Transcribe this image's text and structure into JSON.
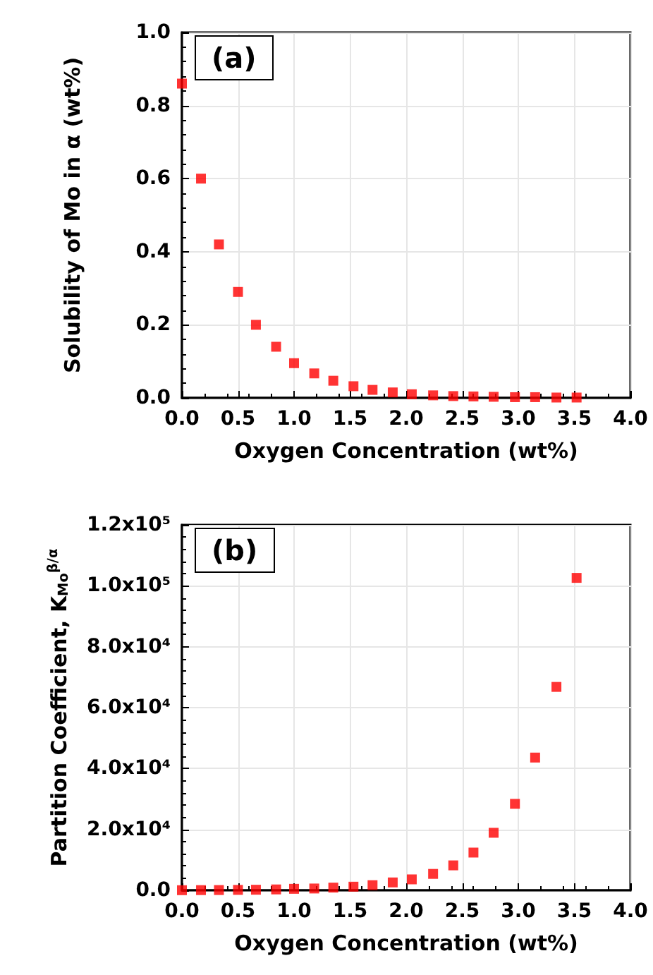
{
  "chart_data": [
    {
      "type": "scatter",
      "xlabel": "Oxygen Concentration (wt%)",
      "ylabel": "Solubility of Mo in α (wt%)",
      "annotations": [
        "(a)"
      ],
      "x": [
        0,
        0.17,
        0.33,
        0.5,
        0.66,
        0.84,
        1.0,
        1.18,
        1.35,
        1.53,
        1.7,
        1.88,
        2.05,
        2.24,
        2.42,
        2.6,
        2.78,
        2.97,
        3.15,
        3.34,
        3.52
      ],
      "series": [
        {
          "color": "#ff0000",
          "values": [
            0.86,
            0.6,
            0.42,
            0.29,
            0.2,
            0.14,
            0.095,
            0.067,
            0.047,
            0.032,
            0.022,
            0.015,
            0.01,
            0.007,
            0.005,
            0.004,
            0.003,
            0.002,
            0.002,
            0.001,
            0.001
          ]
        }
      ],
      "xlim": [
        0,
        4
      ],
      "xticks": [
        {
          "value": 0,
          "label": "0.0"
        },
        0.5,
        {
          "value": 1,
          "label": "1.0"
        },
        1.5,
        {
          "value": 2,
          "label": "2.0"
        },
        2.5,
        {
          "value": 3,
          "label": "3.0"
        },
        3.5,
        {
          "value": 4,
          "label": "4.0"
        }
      ],
      "ylim": [
        0,
        1
      ],
      "yticks": [
        {
          "value": 0,
          "label": "0.0"
        },
        0.2,
        0.4,
        0.6,
        0.8,
        {
          "value": 1,
          "label": "1.0"
        }
      ],
      "grid": true,
      "marker": "square"
    },
    {
      "type": "scatter",
      "xlabel": "Oxygen Concentration (wt%)",
      "ylabel": "Partition Coefficient, K$_{Mo}$$^{β/α}$",
      "annotations": [
        "(b)"
      ],
      "x": [
        0,
        0.17,
        0.33,
        0.5,
        0.66,
        0.84,
        1.0,
        1.18,
        1.35,
        1.53,
        1.7,
        1.88,
        2.05,
        2.24,
        2.42,
        2.6,
        2.78,
        2.97,
        3.15,
        3.34,
        3.52
      ],
      "series": [
        {
          "color": "#ff0000",
          "values": [
            50,
            80,
            100,
            150,
            200,
            300,
            500,
            600,
            900,
            1200,
            1700,
            2600,
            3600,
            5400,
            8200,
            12400,
            18900,
            28400,
            43600,
            66800,
            102600
          ]
        }
      ],
      "xlim": [
        0,
        4
      ],
      "xticks": [
        {
          "value": 0,
          "label": "0.0"
        },
        0.5,
        {
          "value": 1,
          "label": "1.0"
        },
        1.5,
        {
          "value": 2,
          "label": "2.0"
        },
        2.5,
        {
          "value": 3,
          "label": "3.0"
        },
        3.5,
        {
          "value": 4,
          "label": "4.0"
        }
      ],
      "ylim": [
        0,
        120000
      ],
      "yticks": [
        {
          "value": 0,
          "label": "0.0"
        },
        {
          "value": 20000,
          "label": "2.0x10⁴"
        },
        {
          "value": 40000,
          "label": "4.0x10⁴"
        },
        {
          "value": 60000,
          "label": "6.0x10⁴"
        },
        {
          "value": 80000,
          "label": "8.0x10⁴"
        },
        {
          "value": 100000,
          "label": "1.0x10⁵"
        },
        {
          "value": 120000,
          "label": "1.2x10⁵"
        }
      ],
      "grid": true,
      "marker": "square"
    }
  ]
}
